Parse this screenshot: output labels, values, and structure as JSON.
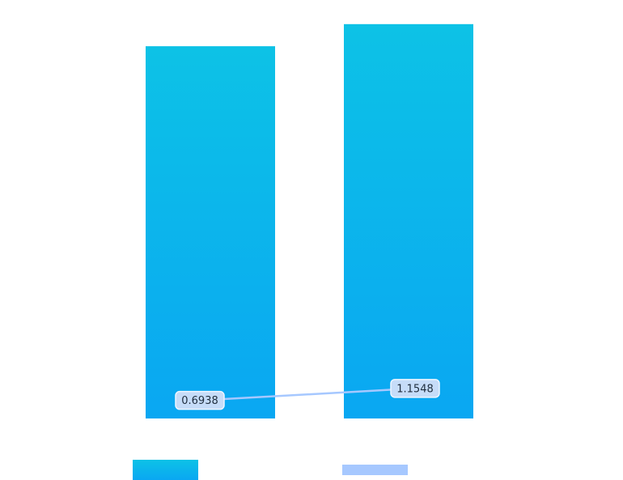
{
  "chart_data": {
    "type": "bar",
    "categories": [
      null,
      null
    ],
    "series": [
      {
        "type": "bar",
        "color": [
          "#0dc2e6",
          "#0aa7f2"
        ],
        "values": [
          8.93,
          9.46
        ]
      },
      {
        "type": "line",
        "axis": "y2",
        "color": "#a6c8ff",
        "values": [
          0.6938,
          1.1548
        ]
      }
    ],
    "ylim": [
      0,
      10
    ],
    "y2lim": [
      0,
      16
    ]
  }
}
